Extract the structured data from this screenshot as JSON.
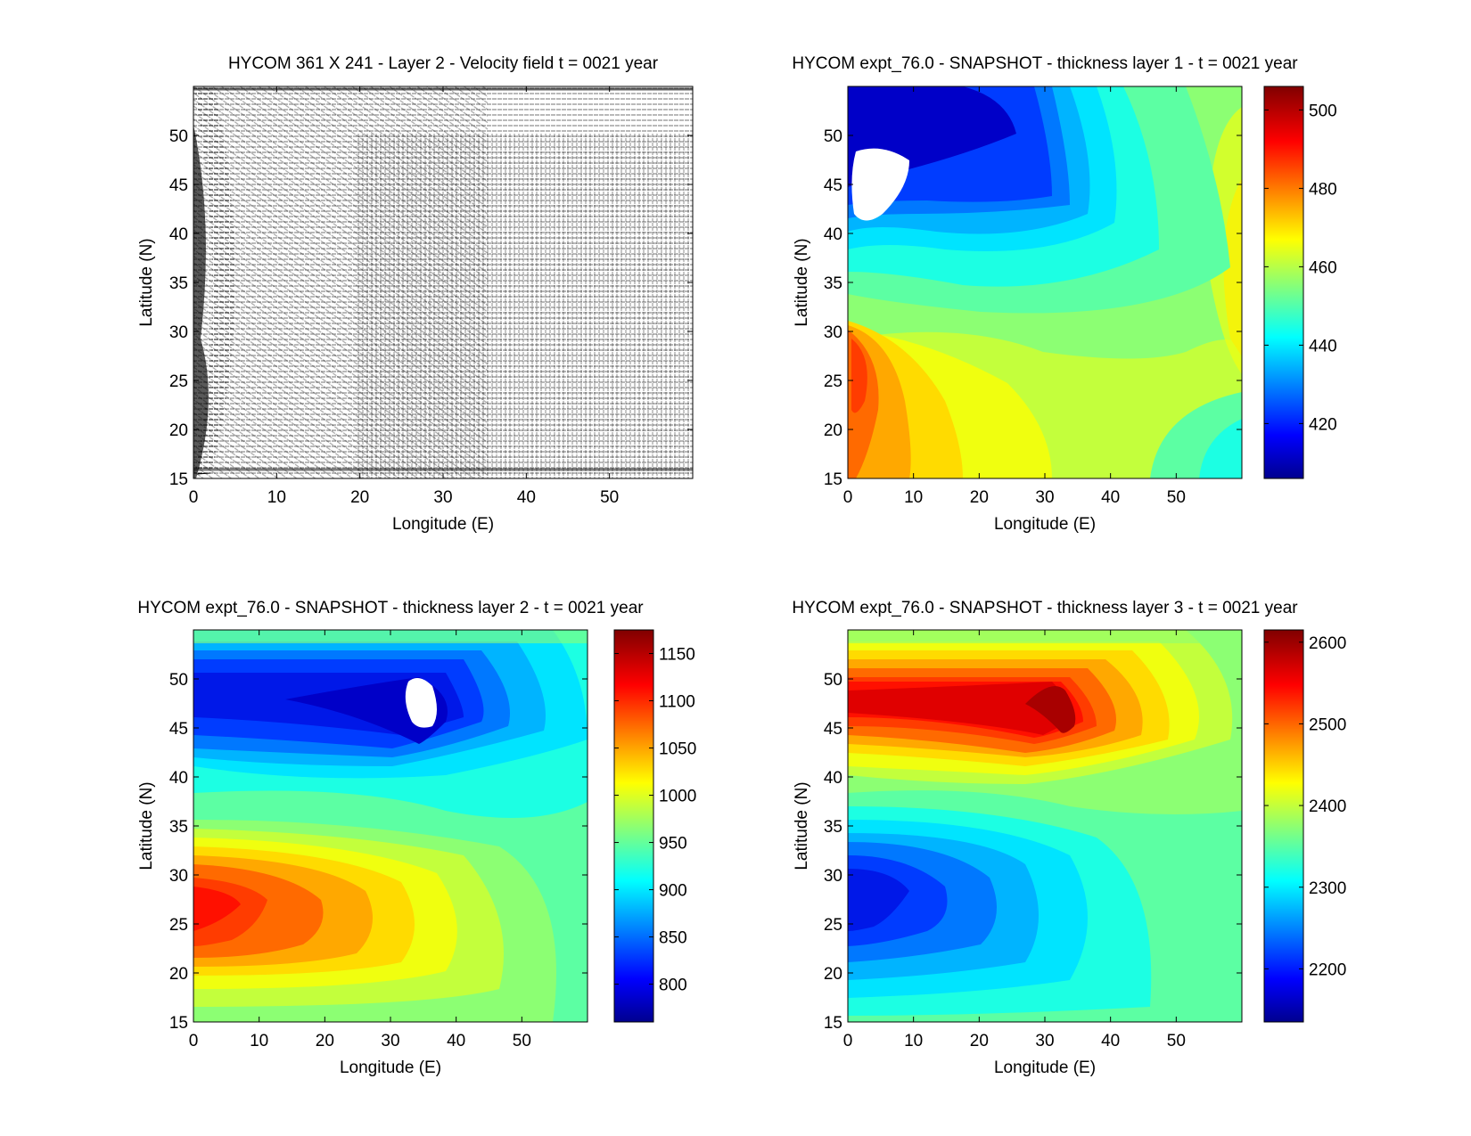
{
  "chart_data": [
    {
      "type": "quiver",
      "title": "HYCOM 361 X 241 - Layer 2 - Velocity field  t = 0021 year",
      "xlabel": "Longitude (E)",
      "ylabel": "Latitude (N)",
      "xlim": [
        0,
        60
      ],
      "ylim": [
        15,
        55
      ],
      "xticks": [
        "0",
        "10",
        "20",
        "30",
        "40",
        "50"
      ],
      "yticks": [
        "15",
        "20",
        "25",
        "30",
        "35",
        "40",
        "45",
        "50"
      ],
      "grid": "361 X 241",
      "layer": 2,
      "reference_arrow_at": [
        0,
        15
      ]
    },
    {
      "type": "contourf",
      "title": "HYCOM expt_76.0 - SNAPSHOT - thickness layer 1 - t = 0021 year",
      "xlabel": "Longitude (E)",
      "ylabel": "Latitude (N)",
      "xlim": [
        0,
        60
      ],
      "ylim": [
        15,
        55
      ],
      "xticks": [
        "0",
        "10",
        "20",
        "30",
        "40",
        "50"
      ],
      "yticks": [
        "15",
        "20",
        "25",
        "30",
        "35",
        "40",
        "45",
        "50"
      ],
      "colorbar": {
        "range": [
          406,
          506
        ],
        "ticks": [
          "420",
          "440",
          "460",
          "480",
          "500"
        ],
        "colormap": "jet"
      },
      "features": [
        {
          "kind": "min",
          "x": 8,
          "y": 48,
          "value": 410
        },
        {
          "kind": "max",
          "x": 1,
          "y": 25,
          "value": 495
        },
        {
          "kind": "max",
          "x": 60,
          "y": 37,
          "value": 475
        },
        {
          "kind": "min",
          "x": 60,
          "y": 15,
          "value": 445
        },
        {
          "kind": "blank",
          "x": 4,
          "y": 46
        }
      ]
    },
    {
      "type": "contourf",
      "title": "HYCOM expt_76.0 - SNAPSHOT - thickness layer 2 - t = 0021 year",
      "xlabel": "Longitude (E)",
      "ylabel": "Latitude (N)",
      "xlim": [
        0,
        60
      ],
      "ylim": [
        15,
        55
      ],
      "xticks": [
        "0",
        "10",
        "20",
        "30",
        "40",
        "50"
      ],
      "yticks": [
        "15",
        "20",
        "25",
        "30",
        "35",
        "40",
        "45",
        "50"
      ],
      "colorbar": {
        "range": [
          760,
          1175
        ],
        "ticks": [
          "800",
          "850",
          "900",
          "950",
          "1000",
          "1050",
          "1100",
          "1150"
        ],
        "colormap": "jet"
      },
      "features": [
        {
          "kind": "min",
          "x": 35,
          "y": 47,
          "value": 770
        },
        {
          "kind": "max",
          "x": 5,
          "y": 25.5,
          "value": 1110
        },
        {
          "kind": "blank",
          "x": 35,
          "y": 48
        }
      ]
    },
    {
      "type": "contourf",
      "title": "HYCOM expt_76.0 - SNAPSHOT - thickness layer 3 - t = 0021 year",
      "xlabel": "Longitude (E)",
      "ylabel": "Latitude (N)",
      "xlim": [
        0,
        60
      ],
      "ylim": [
        15,
        55
      ],
      "xticks": [
        "0",
        "10",
        "20",
        "30",
        "40",
        "50"
      ],
      "yticks": [
        "15",
        "20",
        "25",
        "30",
        "35",
        "40",
        "45",
        "50"
      ],
      "colorbar": {
        "range": [
          2135,
          2615
        ],
        "ticks": [
          "2200",
          "2300",
          "2400",
          "2500",
          "2600"
        ],
        "colormap": "jet"
      },
      "features": [
        {
          "kind": "max",
          "x": 34,
          "y": 47,
          "value": 2590
        },
        {
          "kind": "min",
          "x": 4,
          "y": 25.5,
          "value": 2165
        }
      ]
    }
  ]
}
